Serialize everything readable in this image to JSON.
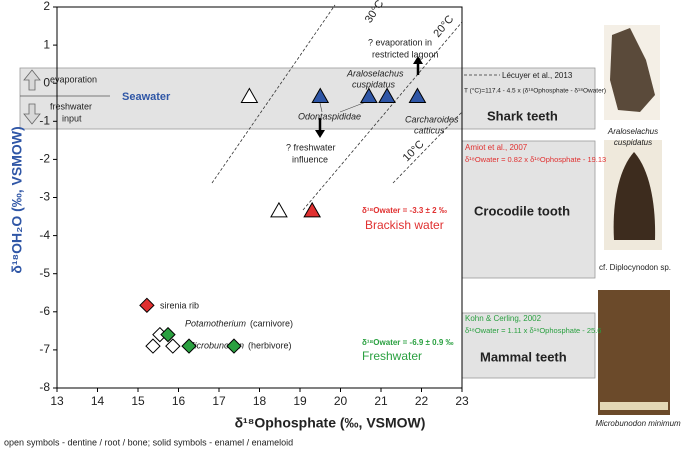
{
  "chart_data": {
    "type": "scatter",
    "xlabel": "δ¹⁸Ophosphate (‰, VSMOW)",
    "ylabel": "δ¹⁸OH₂O (‰, VSMOW)",
    "xlim": [
      13,
      23
    ],
    "xticks": [
      13,
      14,
      15,
      16,
      17,
      18,
      19,
      20,
      21,
      22,
      23
    ],
    "ylim": [
      -8,
      2
    ],
    "yticks": [
      2,
      1,
      0,
      -1,
      -2,
      -3,
      -4,
      -5,
      -6,
      -7,
      -8
    ],
    "series": [
      {
        "marker": "triangle",
        "color": "#ffffff",
        "x": [
          17.75,
          18.48
        ],
        "values": [
          -0.35,
          -3.35
        ]
      },
      {
        "marker": "triangle",
        "color": "#2f56a6",
        "x": [
          19.5,
          20.7,
          21.15,
          21.9
        ],
        "values": [
          -0.35,
          -0.35,
          -0.35,
          -0.35
        ]
      },
      {
        "marker": "triangle",
        "color": "#e03030",
        "x": [
          19.3
        ],
        "values": [
          -3.35
        ]
      },
      {
        "marker": "diamond",
        "color": "#e03030",
        "x": [
          15.22
        ],
        "values": [
          -5.83
        ]
      },
      {
        "marker": "diamond",
        "color": "#ffffff",
        "x": [
          15.54,
          15.37,
          15.86
        ],
        "values": [
          -6.6,
          -6.9,
          -6.9
        ]
      },
      {
        "marker": "diamond",
        "color": "#2aa040",
        "x": [
          15.74,
          16.26,
          17.37
        ],
        "values": [
          -6.6,
          -6.9,
          -6.9
        ]
      }
    ],
    "annotations": [
      "evaporation",
      "freshwater",
      "input",
      "Seawater",
      "? evaporation in",
      "restricted lagoon",
      "Araloselachus",
      "cuspidatus",
      "Odontaspididae",
      "Carcharoides",
      "catticus",
      "? freshwater",
      "influence",
      "Lécuyer et al., 2013",
      "T (°C)=117.4 - 4.5 x (δ¹⁸Ophosphate - δ¹⁸Owater)",
      "Shark teeth",
      "Amiot et al., 2007",
      "δ¹⁸Owater = 0.82 x δ¹⁸Ophosphate - 19.13",
      "δ¹⁸Owater = -3.3 ±  2 ‰",
      "Brackish water",
      "Crocodile tooth",
      "sirenia rib",
      "Potamotherium",
      "(carnivore)",
      "Microbunodon",
      "(herbivore)",
      "Kohn & Cerling, 2002",
      "δ¹⁸Owater = 1.11 x δ¹⁸Ophosphate - 25.6",
      "δ¹⁸Owater = -6.9 ± 0.9 ‰",
      "Freshwater",
      "Mammal teeth",
      "30°C",
      "20°C",
      "10°C",
      "Araloselachus",
      "cuspidatus",
      "cf. Diplocynodon sp.",
      "Microbunodon minimum"
    ],
    "footnote": "open symbols - dentine / root / bone; solid symbols - enamel / enameloid"
  }
}
